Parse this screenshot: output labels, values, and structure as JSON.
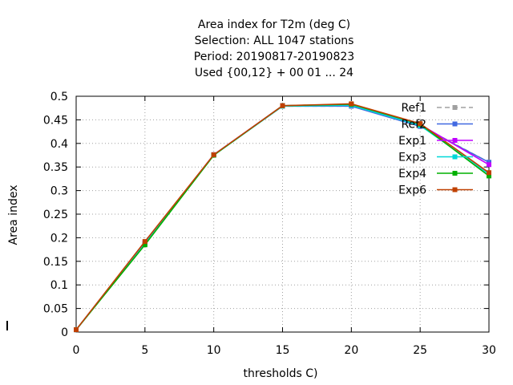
{
  "chart_data": {
    "type": "line",
    "title_lines": [
      "Area index  for T2m (deg C)",
      "Selection: ALL   1047 stations",
      "Period: 20190817-20190823",
      "Used {00,12} + 00 01 ... 24"
    ],
    "xlabel": "thresholds C)",
    "ylabel": "Area index",
    "xlim": [
      0,
      30
    ],
    "ylim": [
      0,
      0.5
    ],
    "xticks": [
      0,
      5,
      10,
      15,
      20,
      25,
      30
    ],
    "yticks": [
      0,
      0.05,
      0.1,
      0.15,
      0.2,
      0.25,
      0.3,
      0.35,
      0.4,
      0.45,
      0.5
    ],
    "grid": true,
    "legend_position": "top-right",
    "x": [
      0,
      5,
      10,
      15,
      20,
      25,
      30
    ],
    "series": [
      {
        "name": "Ref1",
        "color": "#a0a0a0",
        "dashed": true,
        "values": [
          0.005,
          0.188,
          0.376,
          0.479,
          0.479,
          0.438,
          0.36
        ]
      },
      {
        "name": "Ref2",
        "color": "#4169e1",
        "dashed": false,
        "values": [
          0.005,
          0.188,
          0.376,
          0.479,
          0.479,
          0.436,
          0.36
        ]
      },
      {
        "name": "Exp1",
        "color": "#c000ff",
        "dashed": false,
        "values": [
          0.005,
          0.19,
          0.376,
          0.48,
          0.482,
          0.44,
          0.355
        ]
      },
      {
        "name": "Exp3",
        "color": "#00d8d8",
        "dashed": false,
        "values": [
          0.005,
          0.187,
          0.375,
          0.479,
          0.481,
          0.438,
          0.335
        ]
      },
      {
        "name": "Exp4",
        "color": "#00b000",
        "dashed": false,
        "values": [
          0.005,
          0.185,
          0.375,
          0.48,
          0.483,
          0.441,
          0.331
        ]
      },
      {
        "name": "Exp6",
        "color": "#c04000",
        "dashed": false,
        "values": [
          0.005,
          0.192,
          0.376,
          0.48,
          0.484,
          0.442,
          0.338
        ]
      }
    ]
  }
}
